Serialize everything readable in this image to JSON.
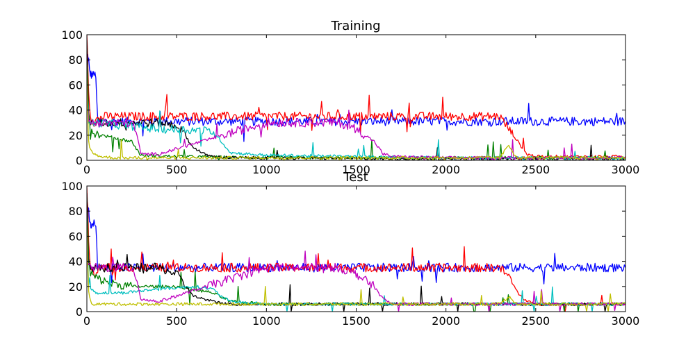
{
  "chart_data": [
    {
      "type": "line",
      "title": "Training",
      "xlabel": "",
      "ylabel": "",
      "xlim": [
        0,
        3000
      ],
      "ylim": [
        0,
        100
      ],
      "xticks": [
        "0",
        "500",
        "1000",
        "1500",
        "2000",
        "2500",
        "3000"
      ],
      "yticks": [
        "0",
        "20",
        "40",
        "60",
        "80",
        "100"
      ],
      "grid": false,
      "series": [
        {
          "color": "#0000ff",
          "x": [
            0,
            5,
            10,
            15,
            20,
            25,
            30,
            40,
            50,
            60,
            150,
            300,
            600,
            1000,
            1500,
            2000,
            2400,
            2600,
            2800,
            3000
          ],
          "y": [
            85,
            83,
            80,
            70,
            69,
            68,
            68,
            68,
            68,
            31,
            31,
            31,
            31,
            31,
            31,
            31,
            31,
            31,
            31,
            31
          ]
        },
        {
          "color": "#ff0000",
          "x": [
            0,
            5,
            10,
            20,
            40,
            60,
            100,
            200,
            300,
            500,
            700,
            1000,
            1500,
            2000,
            2300,
            2350,
            2400,
            2450,
            2500,
            2700,
            3000
          ],
          "y": [
            100,
            80,
            55,
            35,
            30,
            33,
            35,
            35,
            35,
            35,
            35,
            35,
            35,
            35,
            35,
            25,
            15,
            5,
            3,
            3,
            3
          ]
        },
        {
          "color": "#008000",
          "x": [
            0,
            5,
            10,
            20,
            40,
            80,
            150,
            250,
            300,
            500,
            1000,
            2000,
            3000
          ],
          "y": [
            90,
            70,
            40,
            25,
            22,
            20,
            18,
            15,
            4,
            3,
            2,
            2,
            2
          ]
        },
        {
          "color": "#000000",
          "x": [
            0,
            5,
            10,
            50,
            200,
            400,
            500,
            550,
            580,
            600,
            650,
            700,
            800,
            1000,
            2000,
            3000
          ],
          "y": [
            95,
            60,
            30,
            30,
            30,
            30,
            28,
            20,
            12,
            10,
            5,
            3,
            2,
            2,
            1,
            1
          ]
        },
        {
          "color": "#00bfbf",
          "x": [
            0,
            5,
            10,
            50,
            200,
            400,
            600,
            700,
            750,
            800,
            900,
            1000,
            1500,
            2000,
            3000
          ],
          "y": [
            80,
            50,
            30,
            30,
            28,
            25,
            24,
            23,
            15,
            6,
            5,
            4,
            3,
            2,
            2
          ]
        },
        {
          "color": "#bf00bf",
          "x": [
            0,
            5,
            10,
            50,
            150,
            250,
            280,
            300,
            400,
            1000,
            1300,
            1400,
            1500,
            1600,
            1650,
            1700,
            2000,
            3000
          ],
          "y": [
            70,
            40,
            30,
            30,
            30,
            30,
            20,
            5,
            5,
            30,
            30,
            30,
            25,
            15,
            5,
            3,
            2,
            2
          ]
        },
        {
          "color": "#bfbf00",
          "x": [
            0,
            5,
            10,
            20,
            40,
            80,
            150,
            300,
            1000,
            2000,
            2300,
            2350,
            2380,
            2400,
            2500,
            3000
          ],
          "y": [
            75,
            40,
            15,
            8,
            5,
            3,
            2,
            2,
            2,
            2,
            2,
            12,
            5,
            2,
            2,
            2
          ]
        }
      ]
    },
    {
      "type": "line",
      "title": "Test",
      "xlabel": "",
      "ylabel": "",
      "xlim": [
        0,
        3000
      ],
      "ylim": [
        0,
        100
      ],
      "xticks": [
        "0",
        "500",
        "1000",
        "1500",
        "2000",
        "2500",
        "3000"
      ],
      "yticks": [
        "0",
        "20",
        "40",
        "60",
        "80",
        "100"
      ],
      "grid": false,
      "series": [
        {
          "color": "#0000ff",
          "x": [
            0,
            5,
            10,
            15,
            20,
            25,
            30,
            40,
            50,
            60,
            150,
            300,
            600,
            1000,
            1500,
            2000,
            2400,
            2600,
            2800,
            3000
          ],
          "y": [
            85,
            83,
            80,
            70,
            70,
            70,
            70,
            70,
            70,
            35,
            35,
            35,
            35,
            35,
            35,
            35,
            35,
            35,
            35,
            35
          ]
        },
        {
          "color": "#ff0000",
          "x": [
            0,
            5,
            10,
            20,
            40,
            60,
            100,
            200,
            300,
            500,
            700,
            1000,
            1500,
            2000,
            2300,
            2350,
            2400,
            2450,
            2500,
            2700,
            3000
          ],
          "y": [
            100,
            80,
            55,
            35,
            30,
            33,
            35,
            35,
            35,
            35,
            35,
            35,
            35,
            35,
            35,
            28,
            15,
            8,
            6,
            6,
            6
          ]
        },
        {
          "color": "#008000",
          "x": [
            0,
            5,
            10,
            20,
            40,
            80,
            150,
            250,
            300,
            500,
            700,
            800,
            1000,
            2000,
            3000
          ],
          "y": [
            90,
            70,
            40,
            30,
            28,
            25,
            22,
            20,
            20,
            20,
            15,
            8,
            6,
            6,
            6
          ]
        },
        {
          "color": "#000000",
          "x": [
            0,
            5,
            10,
            50,
            200,
            400,
            500,
            550,
            600,
            650,
            700,
            800,
            1000,
            2000,
            3000
          ],
          "y": [
            95,
            60,
            35,
            35,
            35,
            35,
            30,
            20,
            12,
            10,
            8,
            6,
            6,
            6,
            6
          ]
        },
        {
          "color": "#00bfbf",
          "x": [
            0,
            5,
            10,
            50,
            200,
            400,
            600,
            700,
            750,
            800,
            900,
            1000,
            1500,
            2000,
            3000
          ],
          "y": [
            80,
            50,
            20,
            15,
            15,
            18,
            20,
            18,
            12,
            8,
            7,
            6,
            6,
            6,
            6
          ]
        },
        {
          "color": "#bf00bf",
          "x": [
            0,
            5,
            10,
            50,
            150,
            250,
            280,
            300,
            400,
            1000,
            1300,
            1400,
            1500,
            1600,
            1650,
            1700,
            2000,
            3000
          ],
          "y": [
            70,
            40,
            35,
            35,
            35,
            35,
            25,
            10,
            8,
            35,
            35,
            35,
            30,
            20,
            10,
            6,
            6,
            6
          ]
        },
        {
          "color": "#bfbf00",
          "x": [
            0,
            5,
            10,
            20,
            40,
            80,
            150,
            300,
            1000,
            2000,
            2300,
            2350,
            2380,
            2400,
            2500,
            3000
          ],
          "y": [
            75,
            40,
            15,
            8,
            6,
            6,
            6,
            6,
            6,
            6,
            6,
            12,
            8,
            6,
            6,
            6
          ]
        }
      ]
    }
  ]
}
